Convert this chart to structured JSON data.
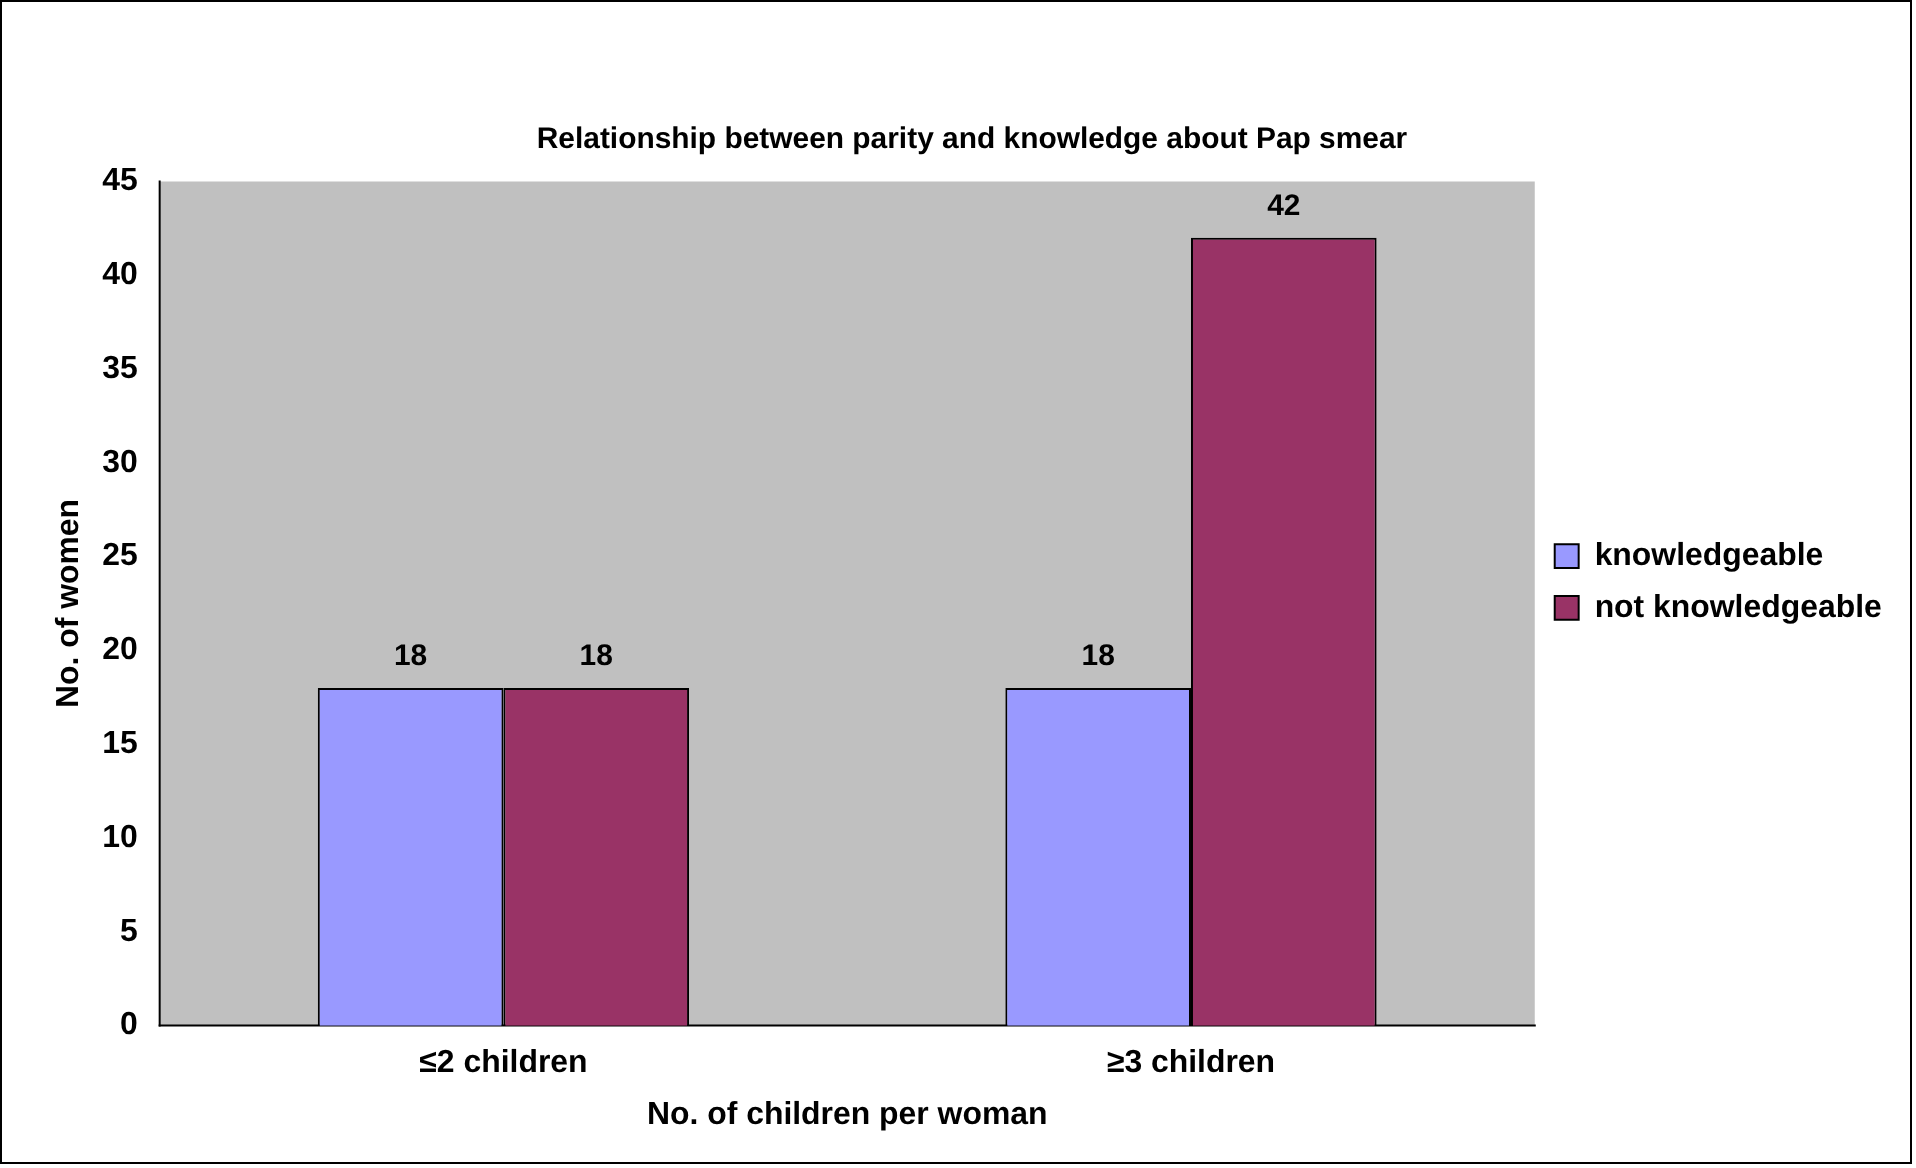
{
  "chart_data": {
    "type": "bar",
    "title": "Relationship between parity and knowledge about Pap smear",
    "xlabel": "No. of children per woman",
    "ylabel": "No. of women",
    "categories": [
      "≤2 children",
      "≥3 children"
    ],
    "series": [
      {
        "name": "knowledgeable",
        "color": "#9999ff",
        "values": [
          18,
          18
        ]
      },
      {
        "name": "not knowledgeable",
        "color": "#993366",
        "values": [
          18,
          42
        ]
      }
    ],
    "ylim": [
      0,
      45
    ],
    "yticks": [
      0,
      5,
      10,
      15,
      20,
      25,
      30,
      35,
      40,
      45
    ],
    "grid": false,
    "legend": "right",
    "data_labels": true
  }
}
